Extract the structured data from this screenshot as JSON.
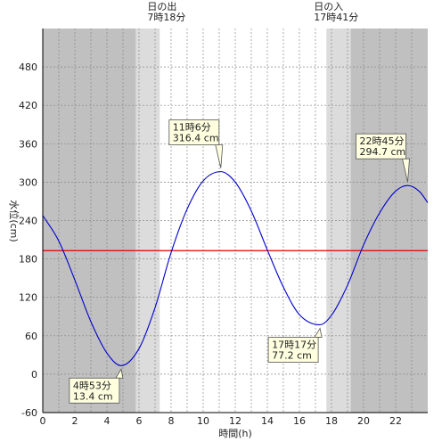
{
  "chart_data": {
    "type": "line",
    "xlabel": "時間(h)",
    "ylabel": "水位(cm)",
    "xlim": [
      0,
      24
    ],
    "ylim": [
      -60,
      540
    ],
    "x_ticks": [
      "0",
      "2",
      "4",
      "6",
      "8",
      "10",
      "12",
      "14",
      "16",
      "18",
      "20",
      "22"
    ],
    "y_ticks": [
      "-60",
      "0",
      "60",
      "120",
      "180",
      "240",
      "300",
      "360",
      "420",
      "480"
    ],
    "mean_level": 193,
    "sunrise": {
      "label": "日の出",
      "time": "7時18分",
      "hour": 7.3
    },
    "sunset": {
      "label": "日の入",
      "time": "17時41分",
      "hour": 17.68
    },
    "twilight": {
      "morning_start": 5.8,
      "evening_end": 19.2
    },
    "extrema": [
      {
        "time": "4時53分",
        "level": "13.4 cm",
        "hour": 4.883,
        "value": 13.4
      },
      {
        "time": "11時6分",
        "level": "316.4 cm",
        "hour": 11.1,
        "value": 316.4
      },
      {
        "time": "17時17分",
        "level": "77.2 cm",
        "hour": 17.283,
        "value": 77.2
      },
      {
        "time": "22時45分",
        "level": "294.7 cm",
        "hour": 22.75,
        "value": 294.7
      }
    ],
    "series": [
      {
        "values_x": [
          0,
          1,
          2,
          3,
          4,
          4.883,
          6,
          7,
          8,
          9,
          10,
          11.1,
          12,
          13,
          14,
          15,
          16,
          17.283,
          18,
          19,
          20,
          21,
          22,
          22.75,
          23.5,
          24
        ],
        "values_y": [
          248,
          208,
          147,
          82,
          33,
          13.4,
          40,
          104,
          190,
          258,
          302,
          316.4,
          300,
          255,
          194,
          136,
          93,
          77.2,
          92,
          139,
          202,
          252,
          286,
          294.7,
          285,
          268
        ]
      }
    ],
    "colors": {
      "line": "#0000cc",
      "mean": "#dd0000",
      "night": "#c0c0c0",
      "twilight": "#dcdcdc",
      "callout_fill": "#ffffe0"
    }
  }
}
